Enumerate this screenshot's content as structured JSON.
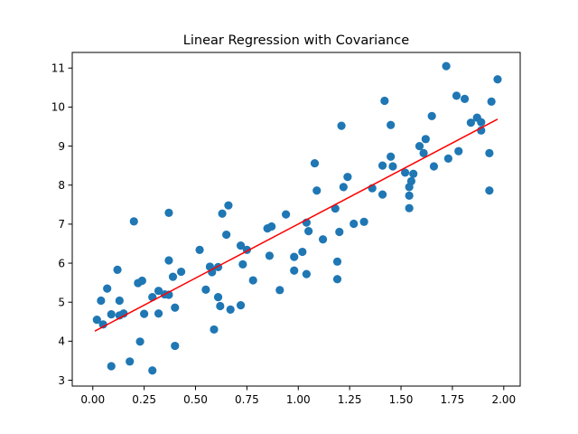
{
  "chart_data": {
    "type": "scatter",
    "title": "Linear Regression with Covariance",
    "xlabel": "",
    "ylabel": "",
    "xlim": [
      -0.1,
      2.08
    ],
    "ylim": [
      2.85,
      11.4
    ],
    "xticks": [
      0.0,
      0.25,
      0.5,
      0.75,
      1.0,
      1.25,
      1.5,
      1.75,
      2.0
    ],
    "xtick_labels": [
      "0.00",
      "0.25",
      "0.50",
      "0.75",
      "1.00",
      "1.25",
      "1.50",
      "1.75",
      "2.00"
    ],
    "yticks": [
      3,
      4,
      5,
      6,
      7,
      8,
      9,
      10,
      11
    ],
    "ytick_labels": [
      "3",
      "4",
      "5",
      "6",
      "7",
      "8",
      "9",
      "10",
      "11"
    ],
    "grid": false,
    "colors": {
      "points": "#1f77b4",
      "fit_line": "#ff0000"
    },
    "series": [
      {
        "type": "scatter",
        "points": [
          [
            0.02,
            4.55
          ],
          [
            0.04,
            5.04
          ],
          [
            0.05,
            4.43
          ],
          [
            0.07,
            5.35
          ],
          [
            0.09,
            4.69
          ],
          [
            0.09,
            3.36
          ],
          [
            0.12,
            5.83
          ],
          [
            0.13,
            5.04
          ],
          [
            0.13,
            4.66
          ],
          [
            0.15,
            4.71
          ],
          [
            0.18,
            3.48
          ],
          [
            0.2,
            7.07
          ],
          [
            0.22,
            5.49
          ],
          [
            0.23,
            3.99
          ],
          [
            0.24,
            5.55
          ],
          [
            0.25,
            4.7
          ],
          [
            0.29,
            5.13
          ],
          [
            0.29,
            3.25
          ],
          [
            0.32,
            5.29
          ],
          [
            0.32,
            4.71
          ],
          [
            0.35,
            5.2
          ],
          [
            0.37,
            5.19
          ],
          [
            0.37,
            6.07
          ],
          [
            0.37,
            7.29
          ],
          [
            0.39,
            5.65
          ],
          [
            0.4,
            4.86
          ],
          [
            0.4,
            3.88
          ],
          [
            0.43,
            5.78
          ],
          [
            0.52,
            6.34
          ],
          [
            0.55,
            5.32
          ],
          [
            0.57,
            5.91
          ],
          [
            0.58,
            5.77
          ],
          [
            0.59,
            4.3
          ],
          [
            0.61,
            5.13
          ],
          [
            0.61,
            5.9
          ],
          [
            0.62,
            4.9
          ],
          [
            0.63,
            7.27
          ],
          [
            0.65,
            6.73
          ],
          [
            0.66,
            7.48
          ],
          [
            0.67,
            4.81
          ],
          [
            0.72,
            4.92
          ],
          [
            0.72,
            6.45
          ],
          [
            0.73,
            5.97
          ],
          [
            0.75,
            6.34
          ],
          [
            0.78,
            5.56
          ],
          [
            0.85,
            6.89
          ],
          [
            0.86,
            6.19
          ],
          [
            0.87,
            6.94
          ],
          [
            0.91,
            5.31
          ],
          [
            0.94,
            7.25
          ],
          [
            0.98,
            6.16
          ],
          [
            0.98,
            5.81
          ],
          [
            1.02,
            6.29
          ],
          [
            1.04,
            5.72
          ],
          [
            1.04,
            7.04
          ],
          [
            1.05,
            6.82
          ],
          [
            1.08,
            8.56
          ],
          [
            1.09,
            7.86
          ],
          [
            1.12,
            6.61
          ],
          [
            1.18,
            7.4
          ],
          [
            1.19,
            6.04
          ],
          [
            1.19,
            5.59
          ],
          [
            1.2,
            6.8
          ],
          [
            1.21,
            9.52
          ],
          [
            1.22,
            7.95
          ],
          [
            1.24,
            8.21
          ],
          [
            1.27,
            7.01
          ],
          [
            1.32,
            7.06
          ],
          [
            1.36,
            7.92
          ],
          [
            1.41,
            7.76
          ],
          [
            1.41,
            8.5
          ],
          [
            1.42,
            10.16
          ],
          [
            1.45,
            9.54
          ],
          [
            1.45,
            8.73
          ],
          [
            1.46,
            8.48
          ],
          [
            1.52,
            8.32
          ],
          [
            1.54,
            7.73
          ],
          [
            1.54,
            7.95
          ],
          [
            1.54,
            7.41
          ],
          [
            1.55,
            8.1
          ],
          [
            1.56,
            8.29
          ],
          [
            1.59,
            9.0
          ],
          [
            1.61,
            8.82
          ],
          [
            1.62,
            9.18
          ],
          [
            1.65,
            9.77
          ],
          [
            1.66,
            8.48
          ],
          [
            1.72,
            11.05
          ],
          [
            1.73,
            8.68
          ],
          [
            1.77,
            10.29
          ],
          [
            1.78,
            8.87
          ],
          [
            1.81,
            10.21
          ],
          [
            1.84,
            9.6
          ],
          [
            1.87,
            9.73
          ],
          [
            1.89,
            9.61
          ],
          [
            1.89,
            9.4
          ],
          [
            1.93,
            7.86
          ],
          [
            1.93,
            8.82
          ],
          [
            1.94,
            10.14
          ],
          [
            1.97,
            10.71
          ]
        ]
      },
      {
        "type": "line",
        "points": [
          [
            0.01,
            4.26
          ],
          [
            1.97,
            9.69
          ]
        ]
      }
    ]
  }
}
